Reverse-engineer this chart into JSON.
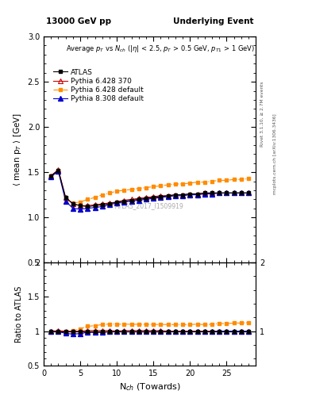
{
  "title_left": "13000 GeV pp",
  "title_right": "Underlying Event",
  "right_label_top": "Rivet 3.1.10, ≥ 2.7M events",
  "right_label_bottom": "mcplots.cern.ch [arXiv:1306.3436]",
  "watermark": "ATLAS_2017_I1509919",
  "xlabel": "N$_{ch}$ (Towards)",
  "ylabel_main": "⟨ mean p$_{T}$ ⟩ [GeV]",
  "ylabel_ratio": "Ratio to ATLAS",
  "ylim_main": [
    0.5,
    3.0
  ],
  "ylim_ratio": [
    0.5,
    2.0
  ],
  "xlim": [
    0,
    29
  ],
  "yticks_main": [
    0.5,
    1.0,
    1.5,
    2.0,
    2.5,
    3.0
  ],
  "yticks_ratio": [
    0.5,
    1.0,
    1.5,
    2.0
  ],
  "xticks": [
    0,
    5,
    10,
    15,
    20,
    25
  ],
  "atlas_x": [
    1,
    2,
    3,
    4,
    5,
    6,
    7,
    8,
    9,
    10,
    11,
    12,
    13,
    14,
    15,
    16,
    17,
    18,
    19,
    20,
    21,
    22,
    23,
    24,
    25,
    26,
    27,
    28
  ],
  "atlas_y": [
    1.46,
    1.52,
    1.22,
    1.15,
    1.13,
    1.12,
    1.13,
    1.14,
    1.15,
    1.17,
    1.18,
    1.19,
    1.2,
    1.21,
    1.22,
    1.23,
    1.24,
    1.25,
    1.25,
    1.26,
    1.26,
    1.27,
    1.27,
    1.27,
    1.27,
    1.27,
    1.27,
    1.27
  ],
  "p6370_x": [
    1,
    2,
    3,
    4,
    5,
    6,
    7,
    8,
    9,
    10,
    11,
    12,
    13,
    14,
    15,
    16,
    17,
    18,
    19,
    20,
    21,
    22,
    23,
    24,
    25,
    26,
    27,
    28
  ],
  "p6370_y": [
    1.46,
    1.53,
    1.22,
    1.15,
    1.13,
    1.13,
    1.14,
    1.15,
    1.16,
    1.17,
    1.19,
    1.2,
    1.21,
    1.22,
    1.23,
    1.24,
    1.24,
    1.25,
    1.25,
    1.26,
    1.26,
    1.27,
    1.27,
    1.27,
    1.27,
    1.27,
    1.27,
    1.27
  ],
  "p6def_x": [
    1,
    2,
    3,
    4,
    5,
    6,
    7,
    8,
    9,
    10,
    11,
    12,
    13,
    14,
    15,
    16,
    17,
    18,
    19,
    20,
    21,
    22,
    23,
    24,
    25,
    26,
    27,
    28
  ],
  "p6def_y": [
    1.46,
    1.52,
    1.2,
    1.16,
    1.17,
    1.2,
    1.22,
    1.25,
    1.27,
    1.29,
    1.3,
    1.31,
    1.32,
    1.33,
    1.34,
    1.35,
    1.36,
    1.37,
    1.37,
    1.38,
    1.39,
    1.39,
    1.4,
    1.41,
    1.41,
    1.42,
    1.42,
    1.43
  ],
  "p8def_x": [
    1,
    2,
    3,
    4,
    5,
    6,
    7,
    8,
    9,
    10,
    11,
    12,
    13,
    14,
    15,
    16,
    17,
    18,
    19,
    20,
    21,
    22,
    23,
    24,
    25,
    26,
    27,
    28
  ],
  "p8def_y": [
    1.45,
    1.51,
    1.18,
    1.1,
    1.09,
    1.1,
    1.11,
    1.12,
    1.14,
    1.16,
    1.17,
    1.18,
    1.19,
    1.2,
    1.21,
    1.22,
    1.23,
    1.24,
    1.24,
    1.25,
    1.25,
    1.26,
    1.26,
    1.27,
    1.27,
    1.27,
    1.27,
    1.27
  ],
  "color_atlas": "#000000",
  "color_p6370": "#cc0000",
  "color_p6def": "#ff8c00",
  "color_p8def": "#0000cc",
  "color_refline": "#007700",
  "bg_color": "#ffffff"
}
